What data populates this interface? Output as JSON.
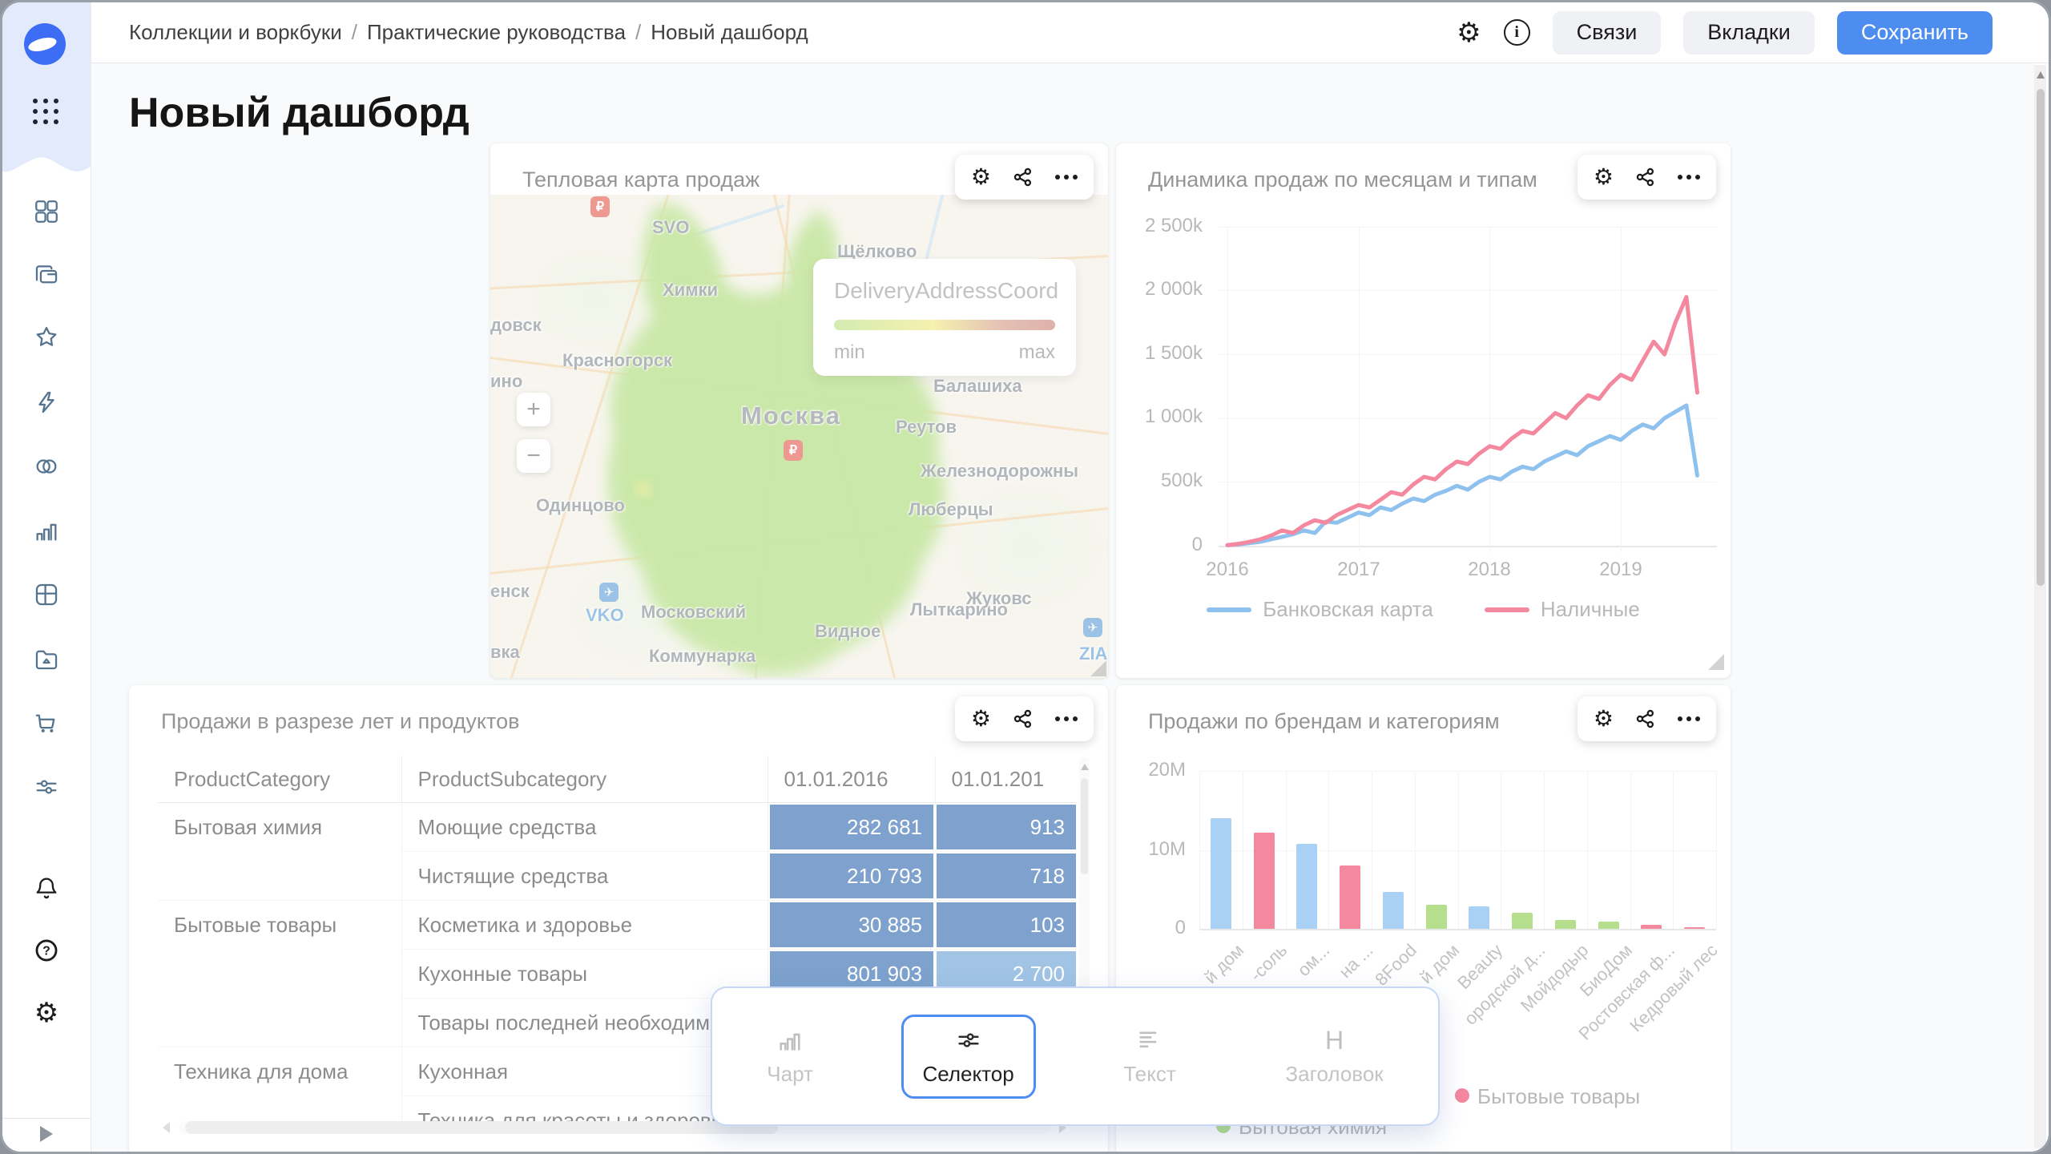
{
  "colors": {
    "accent": "#4e8df0",
    "table_cell": "#2a66ac",
    "table_cell_light": "#649dd5"
  },
  "topbar": {
    "breadcrumbs": [
      "Коллекции и воркбуки",
      "Практические руководства",
      "Новый дашборд"
    ],
    "separator": "/",
    "actions": {
      "links": "Связи",
      "tabs": "Вкладки",
      "save": "Сохранить"
    },
    "icons": [
      "settings-gear",
      "info"
    ]
  },
  "sidebar": {
    "icons": [
      "datalens-logo",
      "apps-grid",
      "collections",
      "workbooks",
      "favorites",
      "quick-actions",
      "connections",
      "charts",
      "tables",
      "files",
      "marketplace",
      "services",
      "notifications",
      "help",
      "settings",
      "expand"
    ]
  },
  "page": {
    "title": "Новый дашборд"
  },
  "widgets": {
    "heatmap": {
      "title": "Тепловая карта продаж",
      "pill_icons": [
        "settings-gear",
        "share",
        "more"
      ],
      "legend": {
        "field": "DeliveryAddressCoord",
        "min_label": "min",
        "max_label": "max",
        "gradient": [
          "#b6e07c",
          "#f0e87a",
          "#c97f72"
        ]
      },
      "zoom_in": "+",
      "zoom_out": "−",
      "currency_marker": "₽",
      "airplane_icon": "✈",
      "map_labels": [
        "SVO",
        "Химки",
        "довск",
        "ино",
        "Красногорск",
        "Щёлково",
        "Москва",
        "Балашиха",
        "Реутов",
        "Железнодорожны",
        "Люберцы",
        "Одинцово",
        "енск",
        "Московский",
        "VKO",
        "Лыткарино",
        "Жуковс",
        "Видное",
        "Коммунарка",
        "вка",
        "ZIA"
      ]
    },
    "line": {
      "title": "Динамика продаж по месяцам и типам",
      "pill_icons": [
        "settings-gear",
        "share",
        "more"
      ],
      "chart_data": {
        "type": "line",
        "x_ticks": [
          "2016",
          "2017",
          "2018",
          "2019"
        ],
        "y_ticks": [
          "0",
          "500k",
          "1 000k",
          "1 500k",
          "2 000k",
          "2 500k"
        ],
        "ylim_k": [
          0,
          2500
        ],
        "x_range_years": [
          2016.0,
          2019.6
        ],
        "grid": true,
        "legend_position": "bottom",
        "series": [
          {
            "name": "Банковская карта",
            "color": "#4699e3",
            "values_k": [
              5,
              10,
              20,
              30,
              50,
              70,
              90,
              120,
              100,
              190,
              180,
              220,
              260,
              240,
              300,
              280,
              330,
              370,
              350,
              400,
              430,
              470,
              440,
              500,
              540,
              520,
              580,
              620,
              600,
              660,
              700,
              740,
              710,
              780,
              820,
              860,
              830,
              900,
              950,
              920,
              1000,
              1050,
              1100,
              550
            ]
          },
          {
            "name": "Наличные",
            "color": "#ed3a5f",
            "values_k": [
              5,
              15,
              30,
              50,
              80,
              120,
              100,
              160,
              200,
              180,
              240,
              280,
              320,
              300,
              360,
              420,
              400,
              480,
              540,
              520,
              600,
              660,
              640,
              720,
              780,
              760,
              840,
              900,
              880,
              960,
              1040,
              1000,
              1100,
              1180,
              1150,
              1260,
              1340,
              1300,
              1450,
              1600,
              1500,
              1750,
              1950,
              1200
            ]
          }
        ]
      }
    },
    "table": {
      "title": "Продажи в разрезе лет и продуктов",
      "pill_icons": [
        "settings-gear",
        "share",
        "more"
      ],
      "columns": [
        "ProductCategory",
        "ProductSubcategory",
        "01.01.2016",
        "01.01.201"
      ],
      "rows": [
        {
          "category": "Бытовая химия",
          "subcategory": "Моющие средства",
          "y2016": "282 681",
          "y2017": "913"
        },
        {
          "category": "",
          "subcategory": "Чистящие средства",
          "y2016": "210 793",
          "y2017": "718"
        },
        {
          "category": "Бытовые товары",
          "subcategory": "Косметика и здоровье",
          "y2016": "30 885",
          "y2017": "103"
        },
        {
          "category": "",
          "subcategory": "Кухонные товары",
          "y2016": "801 903",
          "y2017": "2 700"
        },
        {
          "category": "",
          "subcategory": "Товары последней необходимо",
          "y2016": "",
          "y2017": ""
        },
        {
          "category": "Техника для дома",
          "subcategory": "Кухонная",
          "y2016": "",
          "y2017": ""
        },
        {
          "category": "",
          "subcategory": "Техника для красоты и здоровь",
          "y2016": "",
          "y2017": ""
        }
      ]
    },
    "bars": {
      "title": "Продажи по брендам и категориям",
      "pill_icons": [
        "settings-gear",
        "share",
        "more"
      ],
      "chart_data": {
        "type": "bar",
        "y_ticks": [
          "0",
          "10M",
          "20M"
        ],
        "ylim_M": [
          0,
          20
        ],
        "grid": true,
        "palette": {
          "blue": "#70b4f0",
          "pink": "#ed3a5f",
          "green": "#84cb43"
        },
        "bars": [
          {
            "label": "й дом",
            "value_M": 14,
            "color": "blue"
          },
          {
            "label": "-соль",
            "value_M": 12.2,
            "color": "pink"
          },
          {
            "label": "ом...",
            "value_M": 10.8,
            "color": "blue"
          },
          {
            "label": "на ...",
            "value_M": 8,
            "color": "pink"
          },
          {
            "label": "8Food",
            "value_M": 4.7,
            "color": "blue"
          },
          {
            "label": "й дом",
            "value_M": 3.1,
            "color": "green"
          },
          {
            "label": "Beauty",
            "value_M": 2.8,
            "color": "blue"
          },
          {
            "label": "ородской д...",
            "value_M": 2,
            "color": "green"
          },
          {
            "label": "Мойдодыр",
            "value_M": 1.1,
            "color": "green"
          },
          {
            "label": "БиоДом",
            "value_M": 0.9,
            "color": "green"
          },
          {
            "label": "Ростовская ф...",
            "value_M": 0.5,
            "color": "pink"
          },
          {
            "label": "Кедровый лес",
            "value_M": 0.25,
            "color": "pink"
          }
        ],
        "legend": [
          {
            "label": "Бытовые товары",
            "color": "pink"
          },
          {
            "label": "Бытовая химия",
            "color": "green"
          }
        ]
      }
    }
  },
  "add_panel": {
    "items": [
      {
        "label": "Чарт",
        "icon": "chart",
        "selected": false
      },
      {
        "label": "Селектор",
        "icon": "selector",
        "selected": true
      },
      {
        "label": "Текст",
        "icon": "text",
        "selected": false
      },
      {
        "label": "Заголовок",
        "icon": "heading",
        "selected": false
      }
    ]
  }
}
